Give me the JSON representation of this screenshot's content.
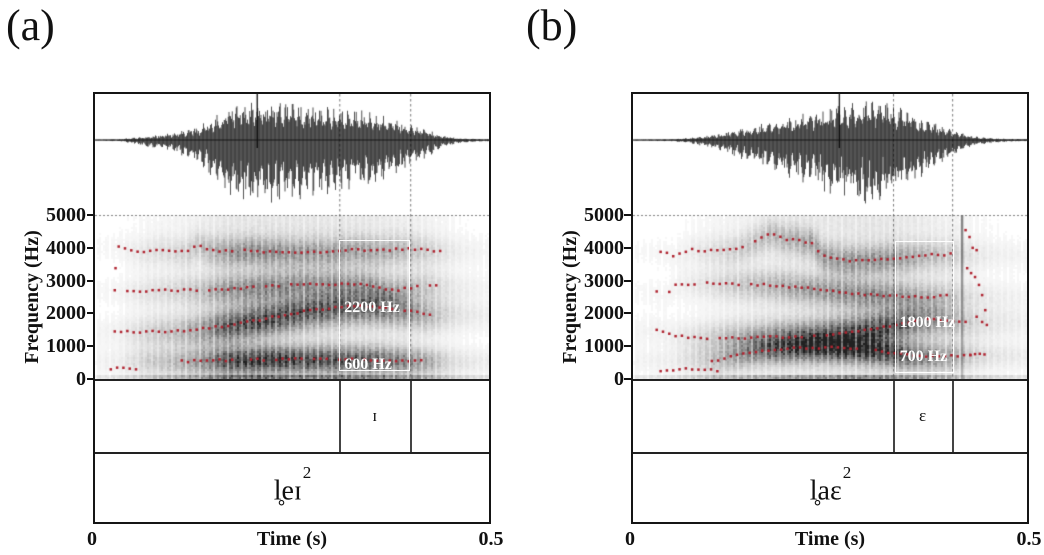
{
  "colors": {
    "formant_dot": "#b02430",
    "text": "#111111",
    "measure_box_border": "#ffffff"
  },
  "chart_data": [
    {
      "id": "a",
      "type": "spectrogram",
      "panel_label": "(a)",
      "word": "l̥eɪ",
      "tone": "2",
      "xlabel": "Time (s)",
      "ylabel": "Frequency (Hz)",
      "x_tick_labels": [
        "0",
        "0.5"
      ],
      "y_tick_labels": [
        "5000",
        "4000",
        "3000",
        "2000",
        "1000",
        "0"
      ],
      "xlim": [
        0,
        0.5
      ],
      "ylim": [
        0,
        5000
      ],
      "grid_5000hz_dotted": true,
      "cursor_t": 0.205,
      "segment": {
        "label": "ɪ",
        "t_start": 0.31,
        "t_end": 0.4
      },
      "measure_box": {
        "t_start": 0.31,
        "t_end": 0.4,
        "f_low": 240,
        "f_high": 4240,
        "labels": [
          {
            "text": "2200 Hz",
            "f": 2150
          },
          {
            "text": "600 Hz",
            "f": 420
          }
        ]
      },
      "waveform_envelope": [
        [
          0,
          0.01
        ],
        [
          0.03,
          0.02
        ],
        [
          0.05,
          0.06
        ],
        [
          0.07,
          0.12
        ],
        [
          0.1,
          0.18
        ],
        [
          0.13,
          0.35
        ],
        [
          0.15,
          0.6
        ],
        [
          0.17,
          0.9
        ],
        [
          0.2,
          1.0
        ],
        [
          0.23,
          1.0
        ],
        [
          0.26,
          0.9
        ],
        [
          0.29,
          0.85
        ],
        [
          0.32,
          0.8
        ],
        [
          0.35,
          0.75
        ],
        [
          0.38,
          0.55
        ],
        [
          0.4,
          0.42
        ],
        [
          0.42,
          0.28
        ],
        [
          0.44,
          0.12
        ],
        [
          0.46,
          0.05
        ],
        [
          0.48,
          0.03
        ],
        [
          0.5,
          0.02
        ]
      ],
      "formant_tracks": [
        {
          "name": "F4",
          "points": [
            [
              0.03,
              4050
            ],
            [
              0.04,
              3930
            ],
            [
              0.055,
              3870
            ],
            [
              0.07,
              3890
            ],
            [
              0.085,
              3950
            ],
            [
              0.1,
              3900
            ],
            [
              0.115,
              3870
            ],
            [
              0.13,
              4120
            ],
            [
              0.14,
              3960
            ],
            [
              0.155,
              3900
            ],
            [
              0.175,
              3890
            ],
            [
              0.195,
              3920
            ],
            [
              0.215,
              3880
            ],
            [
              0.235,
              3900
            ],
            [
              0.255,
              3860
            ],
            [
              0.275,
              3890
            ],
            [
              0.295,
              3870
            ],
            [
              0.315,
              3930
            ],
            [
              0.335,
              3950
            ],
            [
              0.355,
              3900
            ],
            [
              0.375,
              3950
            ],
            [
              0.395,
              3970
            ],
            [
              0.415,
              3940
            ],
            [
              0.44,
              3910
            ]
          ]
        },
        {
          "name": "F3",
          "points": [
            [
              0.025,
              2700
            ],
            [
              0.05,
              2670
            ],
            [
              0.08,
              2700
            ],
            [
              0.11,
              2710
            ],
            [
              0.14,
              2690
            ],
            [
              0.17,
              2740
            ],
            [
              0.2,
              2790
            ],
            [
              0.23,
              2840
            ],
            [
              0.26,
              2890
            ],
            [
              0.29,
              2900
            ],
            [
              0.31,
              2880
            ],
            [
              0.33,
              2900
            ],
            [
              0.35,
              2840
            ],
            [
              0.365,
              2740
            ],
            [
              0.38,
              2700
            ],
            [
              0.4,
              2790
            ],
            [
              0.42,
              2850
            ],
            [
              0.435,
              2830
            ]
          ]
        },
        {
          "name": "F2",
          "points": [
            [
              0.025,
              1450
            ],
            [
              0.05,
              1440
            ],
            [
              0.075,
              1450
            ],
            [
              0.1,
              1460
            ],
            [
              0.13,
              1510
            ],
            [
              0.16,
              1610
            ],
            [
              0.19,
              1730
            ],
            [
              0.22,
              1860
            ],
            [
              0.25,
              2000
            ],
            [
              0.28,
              2110
            ],
            [
              0.3,
              2170
            ],
            [
              0.32,
              2200
            ],
            [
              0.34,
              2220
            ],
            [
              0.36,
              2200
            ],
            [
              0.38,
              2150
            ],
            [
              0.4,
              2080
            ],
            [
              0.415,
              2010
            ],
            [
              0.43,
              1980
            ]
          ]
        },
        {
          "name": "F1",
          "points": [
            [
              0.11,
              540
            ],
            [
              0.14,
              560
            ],
            [
              0.17,
              580
            ],
            [
              0.2,
              590
            ],
            [
              0.23,
              600
            ],
            [
              0.26,
              610
            ],
            [
              0.29,
              605
            ],
            [
              0.32,
              600
            ],
            [
              0.35,
              590
            ],
            [
              0.38,
              575
            ],
            [
              0.405,
              560
            ],
            [
              0.42,
              545
            ]
          ]
        },
        {
          "name": "L-low",
          "points": [
            [
              0.02,
              300
            ],
            [
              0.03,
              325
            ],
            [
              0.04,
              335
            ],
            [
              0.05,
              320
            ],
            [
              0.06,
              300
            ]
          ]
        },
        {
          "name": "stray",
          "scatter": true,
          "points": [
            [
              0.026,
              3380
            ]
          ]
        }
      ]
    },
    {
      "id": "b",
      "type": "spectrogram",
      "panel_label": "(b)",
      "word": "l̥aɛ",
      "tone": "2",
      "xlabel": "Time (s)",
      "ylabel": "Frequency (Hz)",
      "x_tick_labels": [
        "0",
        "0.5"
      ],
      "y_tick_labels": [
        "5000",
        "4000",
        "3000",
        "2000",
        "1000",
        "0"
      ],
      "xlim": [
        0,
        0.5
      ],
      "ylim": [
        0,
        5000
      ],
      "grid_5000hz_dotted": true,
      "cursor_t": 0.261,
      "segment": {
        "label": "ɛ",
        "t_start": 0.33,
        "t_end": 0.405
      },
      "measure_box": {
        "t_start": 0.332,
        "t_end": 0.407,
        "f_low": 180,
        "f_high": 4210,
        "labels": [
          {
            "text": "1800 Hz",
            "f": 1700
          },
          {
            "text": "700 Hz",
            "f": 680
          }
        ]
      },
      "waveform_envelope": [
        [
          0,
          0.01
        ],
        [
          0.05,
          0.02
        ],
        [
          0.07,
          0.05
        ],
        [
          0.09,
          0.1
        ],
        [
          0.12,
          0.22
        ],
        [
          0.15,
          0.35
        ],
        [
          0.18,
          0.5
        ],
        [
          0.21,
          0.65
        ],
        [
          0.24,
          0.8
        ],
        [
          0.27,
          0.95
        ],
        [
          0.3,
          1.0
        ],
        [
          0.32,
          0.95
        ],
        [
          0.34,
          0.8
        ],
        [
          0.36,
          0.6
        ],
        [
          0.38,
          0.45
        ],
        [
          0.4,
          0.3
        ],
        [
          0.42,
          0.15
        ],
        [
          0.44,
          0.07
        ],
        [
          0.46,
          0.04
        ],
        [
          0.5,
          0.02
        ]
      ],
      "formant_tracks": [
        {
          "name": "F4",
          "points": [
            [
              0.035,
              3900
            ],
            [
              0.05,
              3760
            ],
            [
              0.06,
              3820
            ],
            [
              0.075,
              3940
            ],
            [
              0.09,
              3900
            ],
            [
              0.105,
              3940
            ],
            [
              0.12,
              3910
            ],
            [
              0.135,
              4000
            ],
            [
              0.15,
              4150
            ],
            [
              0.165,
              4330
            ],
            [
              0.175,
              4450
            ],
            [
              0.185,
              4340
            ],
            [
              0.195,
              4240
            ],
            [
              0.205,
              4300
            ],
            [
              0.215,
              4160
            ],
            [
              0.225,
              4210
            ],
            [
              0.24,
              3760
            ],
            [
              0.255,
              3660
            ],
            [
              0.275,
              3610
            ],
            [
              0.295,
              3630
            ],
            [
              0.315,
              3660
            ],
            [
              0.335,
              3700
            ],
            [
              0.355,
              3740
            ],
            [
              0.375,
              3790
            ],
            [
              0.39,
              3770
            ],
            [
              0.405,
              3810
            ]
          ]
        },
        {
          "name": "F3",
          "points": [
            [
              0.03,
              2650
            ],
            [
              0.04,
              2550
            ],
            [
              0.055,
              2880
            ],
            [
              0.07,
              2900
            ],
            [
              0.09,
              2920
            ],
            [
              0.11,
              2900
            ],
            [
              0.13,
              2900
            ],
            [
              0.15,
              2890
            ],
            [
              0.17,
              2870
            ],
            [
              0.19,
              2840
            ],
            [
              0.21,
              2790
            ],
            [
              0.23,
              2740
            ],
            [
              0.25,
              2690
            ],
            [
              0.27,
              2630
            ],
            [
              0.29,
              2590
            ],
            [
              0.31,
              2560
            ],
            [
              0.33,
              2540
            ],
            [
              0.35,
              2520
            ],
            [
              0.37,
              2500
            ],
            [
              0.39,
              2520
            ],
            [
              0.405,
              2550
            ]
          ]
        },
        {
          "name": "F2",
          "points": [
            [
              0.03,
              1480
            ],
            [
              0.045,
              1380
            ],
            [
              0.06,
              1300
            ],
            [
              0.08,
              1260
            ],
            [
              0.1,
              1250
            ],
            [
              0.13,
              1250
            ],
            [
              0.16,
              1265
            ],
            [
              0.19,
              1285
            ],
            [
              0.22,
              1310
            ],
            [
              0.25,
              1360
            ],
            [
              0.27,
              1410
            ],
            [
              0.29,
              1470
            ],
            [
              0.31,
              1550
            ],
            [
              0.33,
              1650
            ],
            [
              0.35,
              1740
            ],
            [
              0.37,
              1800
            ],
            [
              0.385,
              1820
            ],
            [
              0.4,
              1800
            ],
            [
              0.415,
              1770
            ],
            [
              0.43,
              1745
            ]
          ]
        },
        {
          "name": "F1",
          "points": [
            [
              0.1,
              560
            ],
            [
              0.115,
              620
            ],
            [
              0.13,
              700
            ],
            [
              0.145,
              780
            ],
            [
              0.16,
              850
            ],
            [
              0.18,
              900
            ],
            [
              0.2,
              930
            ],
            [
              0.22,
              950
            ],
            [
              0.24,
              960
            ],
            [
              0.26,
              950
            ],
            [
              0.28,
              930
            ],
            [
              0.3,
              890
            ],
            [
              0.32,
              830
            ],
            [
              0.34,
              770
            ],
            [
              0.36,
              725
            ],
            [
              0.38,
              700
            ],
            [
              0.4,
              700
            ],
            [
              0.415,
              715
            ],
            [
              0.43,
              725
            ]
          ]
        },
        {
          "name": "L-low",
          "points": [
            [
              0.035,
              260
            ],
            [
              0.05,
              290
            ],
            [
              0.065,
              300
            ],
            [
              0.08,
              290
            ],
            [
              0.095,
              270
            ],
            [
              0.11,
              255
            ]
          ]
        },
        {
          "name": "release",
          "scatter": true,
          "points": [
            [
              0.422,
              4540
            ],
            [
              0.427,
              4330
            ],
            [
              0.431,
              4000
            ],
            [
              0.436,
              3930
            ],
            [
              0.424,
              3380
            ],
            [
              0.429,
              3230
            ],
            [
              0.434,
              3110
            ],
            [
              0.439,
              2870
            ],
            [
              0.443,
              2560
            ],
            [
              0.447,
              2100
            ],
            [
              0.436,
              1900
            ],
            [
              0.443,
              1740
            ],
            [
              0.449,
              1650
            ],
            [
              0.428,
              740
            ],
            [
              0.434,
              760
            ],
            [
              0.44,
              770
            ],
            [
              0.446,
              750
            ]
          ]
        }
      ]
    }
  ]
}
